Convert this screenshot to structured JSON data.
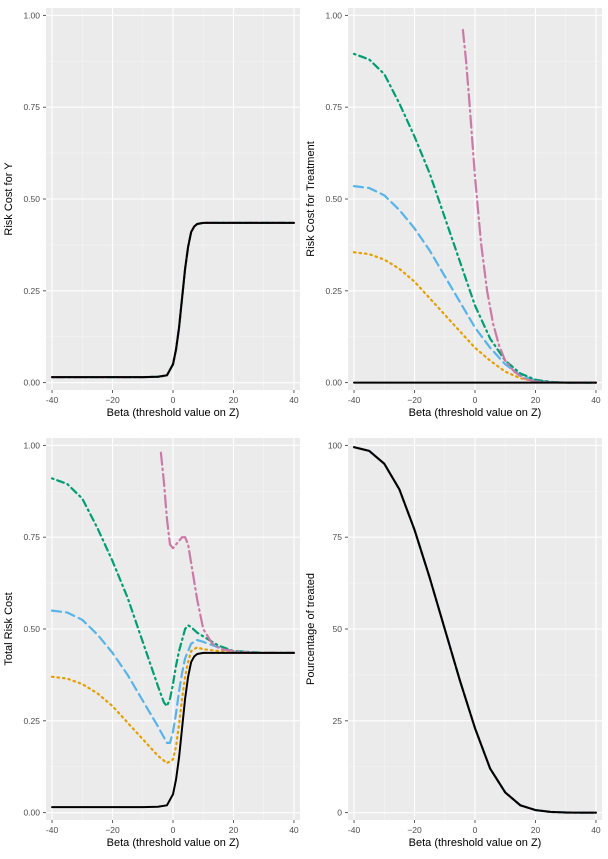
{
  "colors": {
    "panel_bg": "#ebebeb",
    "grid_major": "#ffffff",
    "grid_minor": "#f5f5f5",
    "series": [
      "#000000",
      "#e69f00",
      "#56b4e9",
      "#009e73",
      "#cc79a7"
    ]
  },
  "series_styles": [
    "solid",
    "dotted",
    "dashed",
    "dotdash",
    "longdash-dot"
  ],
  "chart_data": [
    {
      "type": "line",
      "xlabel": "Beta (threshold value on Z)",
      "ylabel": "Risk Cost for Y",
      "xlim": [
        -42,
        42
      ],
      "ylim": [
        -0.02,
        1.02
      ],
      "xticks": [
        -40,
        -20,
        0,
        20,
        40
      ],
      "xtick_labels": [
        "-40",
        "−20",
        "0",
        "20",
        "40"
      ],
      "yticks": [
        0,
        0.25,
        0.5,
        0.75,
        1
      ],
      "ytick_labels": [
        "0.00",
        "0.25",
        "0.50",
        "0.75",
        "1.00"
      ],
      "grid": true,
      "series": [
        {
          "x": [
            -40,
            -30,
            -20,
            -10,
            -5,
            -2,
            0,
            1,
            2,
            3,
            4,
            5,
            6,
            7,
            8,
            10,
            15,
            20,
            30,
            40
          ],
          "y": [
            0.015,
            0.015,
            0.015,
            0.015,
            0.016,
            0.02,
            0.05,
            0.09,
            0.15,
            0.23,
            0.31,
            0.37,
            0.41,
            0.425,
            0.432,
            0.435,
            0.435,
            0.435,
            0.435,
            0.435
          ]
        },
        {
          "x": [
            -40,
            -30,
            -20,
            -10,
            -5,
            -2,
            0,
            1,
            2,
            3,
            4,
            5,
            6,
            7,
            8,
            10,
            15,
            20,
            30,
            40
          ],
          "y": [
            0.015,
            0.015,
            0.015,
            0.015,
            0.016,
            0.02,
            0.05,
            0.09,
            0.15,
            0.23,
            0.31,
            0.37,
            0.41,
            0.425,
            0.432,
            0.435,
            0.435,
            0.435,
            0.435,
            0.435
          ]
        },
        {
          "x": [
            -40,
            -30,
            -20,
            -10,
            -5,
            -2,
            0,
            1,
            2,
            3,
            4,
            5,
            6,
            7,
            8,
            10,
            15,
            20,
            30,
            40
          ],
          "y": [
            0.015,
            0.015,
            0.015,
            0.015,
            0.016,
            0.02,
            0.05,
            0.09,
            0.15,
            0.23,
            0.31,
            0.37,
            0.41,
            0.425,
            0.432,
            0.435,
            0.435,
            0.435,
            0.435,
            0.435
          ]
        },
        {
          "x": [
            -40,
            -30,
            -20,
            -10,
            -5,
            -2,
            0,
            1,
            2,
            3,
            4,
            5,
            6,
            7,
            8,
            10,
            15,
            20,
            30,
            40
          ],
          "y": [
            0.015,
            0.015,
            0.015,
            0.015,
            0.016,
            0.02,
            0.05,
            0.09,
            0.15,
            0.23,
            0.31,
            0.37,
            0.41,
            0.425,
            0.432,
            0.435,
            0.435,
            0.435,
            0.435,
            0.435
          ]
        },
        {
          "x": [
            -40,
            -30,
            -20,
            -10,
            -5,
            -2,
            0,
            1,
            2,
            3,
            4,
            5,
            6,
            7,
            8,
            10,
            15,
            20,
            30,
            40
          ],
          "y": [
            0.015,
            0.015,
            0.015,
            0.015,
            0.016,
            0.02,
            0.05,
            0.09,
            0.15,
            0.23,
            0.31,
            0.37,
            0.41,
            0.425,
            0.432,
            0.435,
            0.435,
            0.435,
            0.435,
            0.435
          ]
        }
      ]
    },
    {
      "type": "line",
      "xlabel": "Beta (threshold value on Z)",
      "ylabel": "Risk Cost for Treatment",
      "xlim": [
        -42,
        42
      ],
      "ylim": [
        -0.02,
        1.02
      ],
      "xticks": [
        -40,
        -20,
        0,
        20,
        40
      ],
      "xtick_labels": [
        "-40",
        "−20",
        "0",
        "20",
        "40"
      ],
      "yticks": [
        0,
        0.25,
        0.5,
        0.75,
        1
      ],
      "ytick_labels": [
        "0.00",
        "0.25",
        "0.50",
        "0.75",
        "1.00"
      ],
      "grid": true,
      "series": [
        {
          "x": [
            -40,
            -20,
            0,
            20,
            40
          ],
          "y": [
            0,
            0,
            0,
            0,
            0
          ]
        },
        {
          "x": [
            -40,
            -35,
            -30,
            -25,
            -20,
            -15,
            -10,
            -5,
            0,
            5,
            10,
            15,
            20,
            25,
            30,
            40
          ],
          "y": [
            0.355,
            0.35,
            0.335,
            0.31,
            0.275,
            0.23,
            0.185,
            0.14,
            0.095,
            0.06,
            0.03,
            0.012,
            0.004,
            0.001,
            0,
            0
          ]
        },
        {
          "x": [
            -40,
            -35,
            -30,
            -25,
            -20,
            -15,
            -10,
            -5,
            0,
            5,
            10,
            15,
            20,
            25,
            30,
            40
          ],
          "y": [
            0.535,
            0.53,
            0.51,
            0.47,
            0.42,
            0.36,
            0.29,
            0.22,
            0.15,
            0.095,
            0.05,
            0.02,
            0.006,
            0.002,
            0,
            0
          ]
        },
        {
          "x": [
            -40,
            -35,
            -30,
            -25,
            -20,
            -15,
            -10,
            -5,
            0,
            5,
            10,
            15,
            20,
            25,
            30,
            40
          ],
          "y": [
            0.895,
            0.88,
            0.84,
            0.76,
            0.67,
            0.57,
            0.45,
            0.33,
            0.21,
            0.12,
            0.06,
            0.025,
            0.008,
            0.002,
            0,
            0
          ]
        },
        {
          "x": [
            -4,
            -3,
            -2,
            -1,
            0,
            2,
            4,
            6,
            8,
            10,
            13,
            16,
            20,
            25,
            30,
            40
          ],
          "y": [
            0.96,
            0.88,
            0.78,
            0.67,
            0.56,
            0.38,
            0.25,
            0.16,
            0.1,
            0.06,
            0.03,
            0.012,
            0.003,
            0.001,
            0,
            0
          ]
        }
      ]
    },
    {
      "type": "line",
      "xlabel": "Beta (threshold value on Z)",
      "ylabel": "Total Risk Cost",
      "xlim": [
        -42,
        42
      ],
      "ylim": [
        -0.02,
        1.02
      ],
      "xticks": [
        -40,
        -20,
        0,
        20,
        40
      ],
      "xtick_labels": [
        "-40",
        "−20",
        "0",
        "20",
        "40"
      ],
      "yticks": [
        0,
        0.25,
        0.5,
        0.75,
        1
      ],
      "ytick_labels": [
        "0.00",
        "0.25",
        "0.50",
        "0.75",
        "1.00"
      ],
      "grid": true,
      "series": [
        {
          "x": [
            -40,
            -30,
            -20,
            -10,
            -5,
            -2,
            0,
            1,
            2,
            3,
            4,
            5,
            6,
            7,
            8,
            10,
            15,
            20,
            30,
            40
          ],
          "y": [
            0.015,
            0.015,
            0.015,
            0.015,
            0.016,
            0.02,
            0.05,
            0.09,
            0.15,
            0.23,
            0.31,
            0.37,
            0.41,
            0.425,
            0.432,
            0.435,
            0.435,
            0.435,
            0.435,
            0.435
          ]
        },
        {
          "x": [
            -40,
            -35,
            -30,
            -25,
            -20,
            -15,
            -10,
            -5,
            -2,
            0,
            1,
            2,
            3,
            4,
            5,
            6,
            8,
            10,
            15,
            20,
            30,
            40
          ],
          "y": [
            0.37,
            0.365,
            0.35,
            0.325,
            0.29,
            0.245,
            0.2,
            0.155,
            0.135,
            0.145,
            0.18,
            0.24,
            0.31,
            0.37,
            0.41,
            0.44,
            0.45,
            0.445,
            0.44,
            0.436,
            0.435,
            0.435
          ]
        },
        {
          "x": [
            -40,
            -35,
            -30,
            -25,
            -20,
            -15,
            -10,
            -5,
            -3,
            -2,
            -1,
            0,
            1,
            2,
            3,
            4,
            6,
            8,
            10,
            15,
            20,
            30,
            40
          ],
          "y": [
            0.55,
            0.545,
            0.525,
            0.485,
            0.435,
            0.375,
            0.305,
            0.235,
            0.205,
            0.19,
            0.19,
            0.22,
            0.27,
            0.33,
            0.38,
            0.42,
            0.46,
            0.47,
            0.465,
            0.45,
            0.44,
            0.435,
            0.435
          ]
        },
        {
          "x": [
            -40,
            -35,
            -30,
            -25,
            -20,
            -15,
            -10,
            -5,
            -3,
            -2,
            -1,
            0,
            1,
            2,
            3,
            4,
            5,
            6,
            8,
            10,
            15,
            20,
            30,
            40
          ],
          "y": [
            0.91,
            0.895,
            0.855,
            0.775,
            0.685,
            0.585,
            0.465,
            0.345,
            0.3,
            0.29,
            0.31,
            0.35,
            0.4,
            0.44,
            0.47,
            0.5,
            0.51,
            0.505,
            0.49,
            0.48,
            0.455,
            0.44,
            0.435,
            0.435
          ]
        },
        {
          "x": [
            -4,
            -3,
            -2,
            -1,
            0,
            1,
            2,
            3,
            4,
            5,
            6,
            8,
            10,
            13,
            16,
            20,
            25,
            30,
            40
          ],
          "y": [
            0.98,
            0.9,
            0.8,
            0.73,
            0.72,
            0.73,
            0.74,
            0.75,
            0.75,
            0.73,
            0.68,
            0.58,
            0.5,
            0.46,
            0.445,
            0.44,
            0.436,
            0.435,
            0.435
          ]
        }
      ]
    },
    {
      "type": "line",
      "xlabel": "Beta (threshold value on Z)",
      "ylabel": "Pourcentage of treated",
      "xlim": [
        -42,
        42
      ],
      "ylim": [
        -2,
        102
      ],
      "xticks": [
        -40,
        -20,
        0,
        20,
        40
      ],
      "xtick_labels": [
        "-40",
        "−20",
        "0",
        "20",
        "40"
      ],
      "yticks": [
        0,
        25,
        50,
        75,
        100
      ],
      "ytick_labels": [
        "0",
        "25",
        "50",
        "75",
        "100"
      ],
      "grid": true,
      "series": [
        {
          "x": [
            -40,
            -35,
            -30,
            -25,
            -20,
            -15,
            -10,
            -5,
            0,
            5,
            10,
            15,
            20,
            25,
            30,
            35,
            40
          ],
          "y": [
            99.5,
            98.5,
            95,
            88,
            77,
            64,
            50,
            36,
            23,
            12,
            5.5,
            2,
            0.7,
            0.2,
            0.05,
            0,
            0
          ]
        },
        {
          "x": [
            -40,
            -35,
            -30,
            -25,
            -20,
            -15,
            -10,
            -5,
            0,
            5,
            10,
            15,
            20,
            25,
            30,
            35,
            40
          ],
          "y": [
            99.5,
            98.5,
            95,
            88,
            77,
            64,
            50,
            36,
            23,
            12,
            5.5,
            2,
            0.7,
            0.2,
            0.05,
            0,
            0
          ]
        },
        {
          "x": [
            -40,
            -35,
            -30,
            -25,
            -20,
            -15,
            -10,
            -5,
            0,
            5,
            10,
            15,
            20,
            25,
            30,
            35,
            40
          ],
          "y": [
            99.5,
            98.5,
            95,
            88,
            77,
            64,
            50,
            36,
            23,
            12,
            5.5,
            2,
            0.7,
            0.2,
            0.05,
            0,
            0
          ]
        },
        {
          "x": [
            -40,
            -35,
            -30,
            -25,
            -20,
            -15,
            -10,
            -5,
            0,
            5,
            10,
            15,
            20,
            25,
            30,
            35,
            40
          ],
          "y": [
            99.5,
            98.5,
            95,
            88,
            77,
            64,
            50,
            36,
            23,
            12,
            5.5,
            2,
            0.7,
            0.2,
            0.05,
            0,
            0
          ]
        },
        {
          "x": [
            -40,
            -35,
            -30,
            -25,
            -20,
            -15,
            -10,
            -5,
            0,
            5,
            10,
            15,
            20,
            25,
            30,
            35,
            40
          ],
          "y": [
            99.5,
            98.5,
            95,
            88,
            77,
            64,
            50,
            36,
            23,
            12,
            5.5,
            2,
            0.7,
            0.2,
            0.05,
            0,
            0
          ]
        }
      ]
    }
  ]
}
